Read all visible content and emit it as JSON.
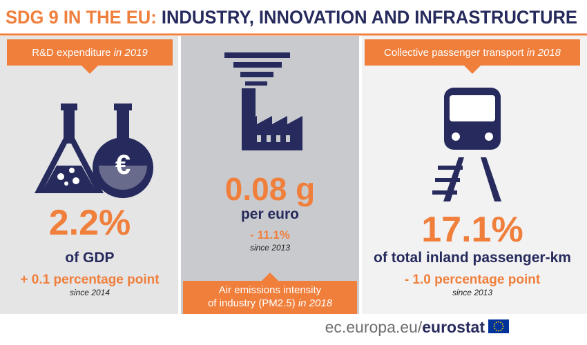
{
  "header": {
    "title_prefix": "SDG 9 IN THE EU:",
    "title": "INDUSTRY, INNOVATION AND INFRASTRUCTURE"
  },
  "panels": [
    {
      "label": "R&D expenditure",
      "label_period": "in 2019",
      "value": "2.2%",
      "unit": "of GDP",
      "change": "+ 0.1 percentage point",
      "since": "since 2014"
    },
    {
      "label": "Air emissions intensity",
      "label_2": "of industry (PM2.5)",
      "label_period": "in 2018",
      "value": "0.08 g",
      "unit": "per euro",
      "change": "- 11.1%",
      "since": "since 2013"
    },
    {
      "label": "Collective passenger transport",
      "label_period": "in 2018",
      "value": "17.1%",
      "unit": "of total inland passenger-km",
      "change": "- 1.0 percentage point",
      "since": "since 2013"
    }
  ],
  "footer": {
    "site": "ec.europa.eu/",
    "brand": "eurostat"
  }
}
